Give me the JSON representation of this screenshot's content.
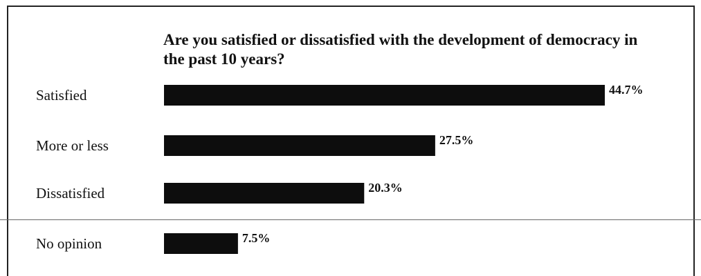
{
  "chart_data": {
    "type": "bar",
    "orientation": "horizontal",
    "title": "Are you satisfied or dissatisfied with the development of democracy in the past 10 years?",
    "categories": [
      "Satisfied",
      "More or less",
      "Dissatisfied",
      "No opinion"
    ],
    "values": [
      44.7,
      27.5,
      20.3,
      7.5
    ],
    "value_labels": [
      "44.7%",
      "27.5%",
      "20.3%",
      "7.5%"
    ],
    "unit": "%",
    "bar_color": "#0d0d0d",
    "grid": false,
    "legend": "none"
  }
}
